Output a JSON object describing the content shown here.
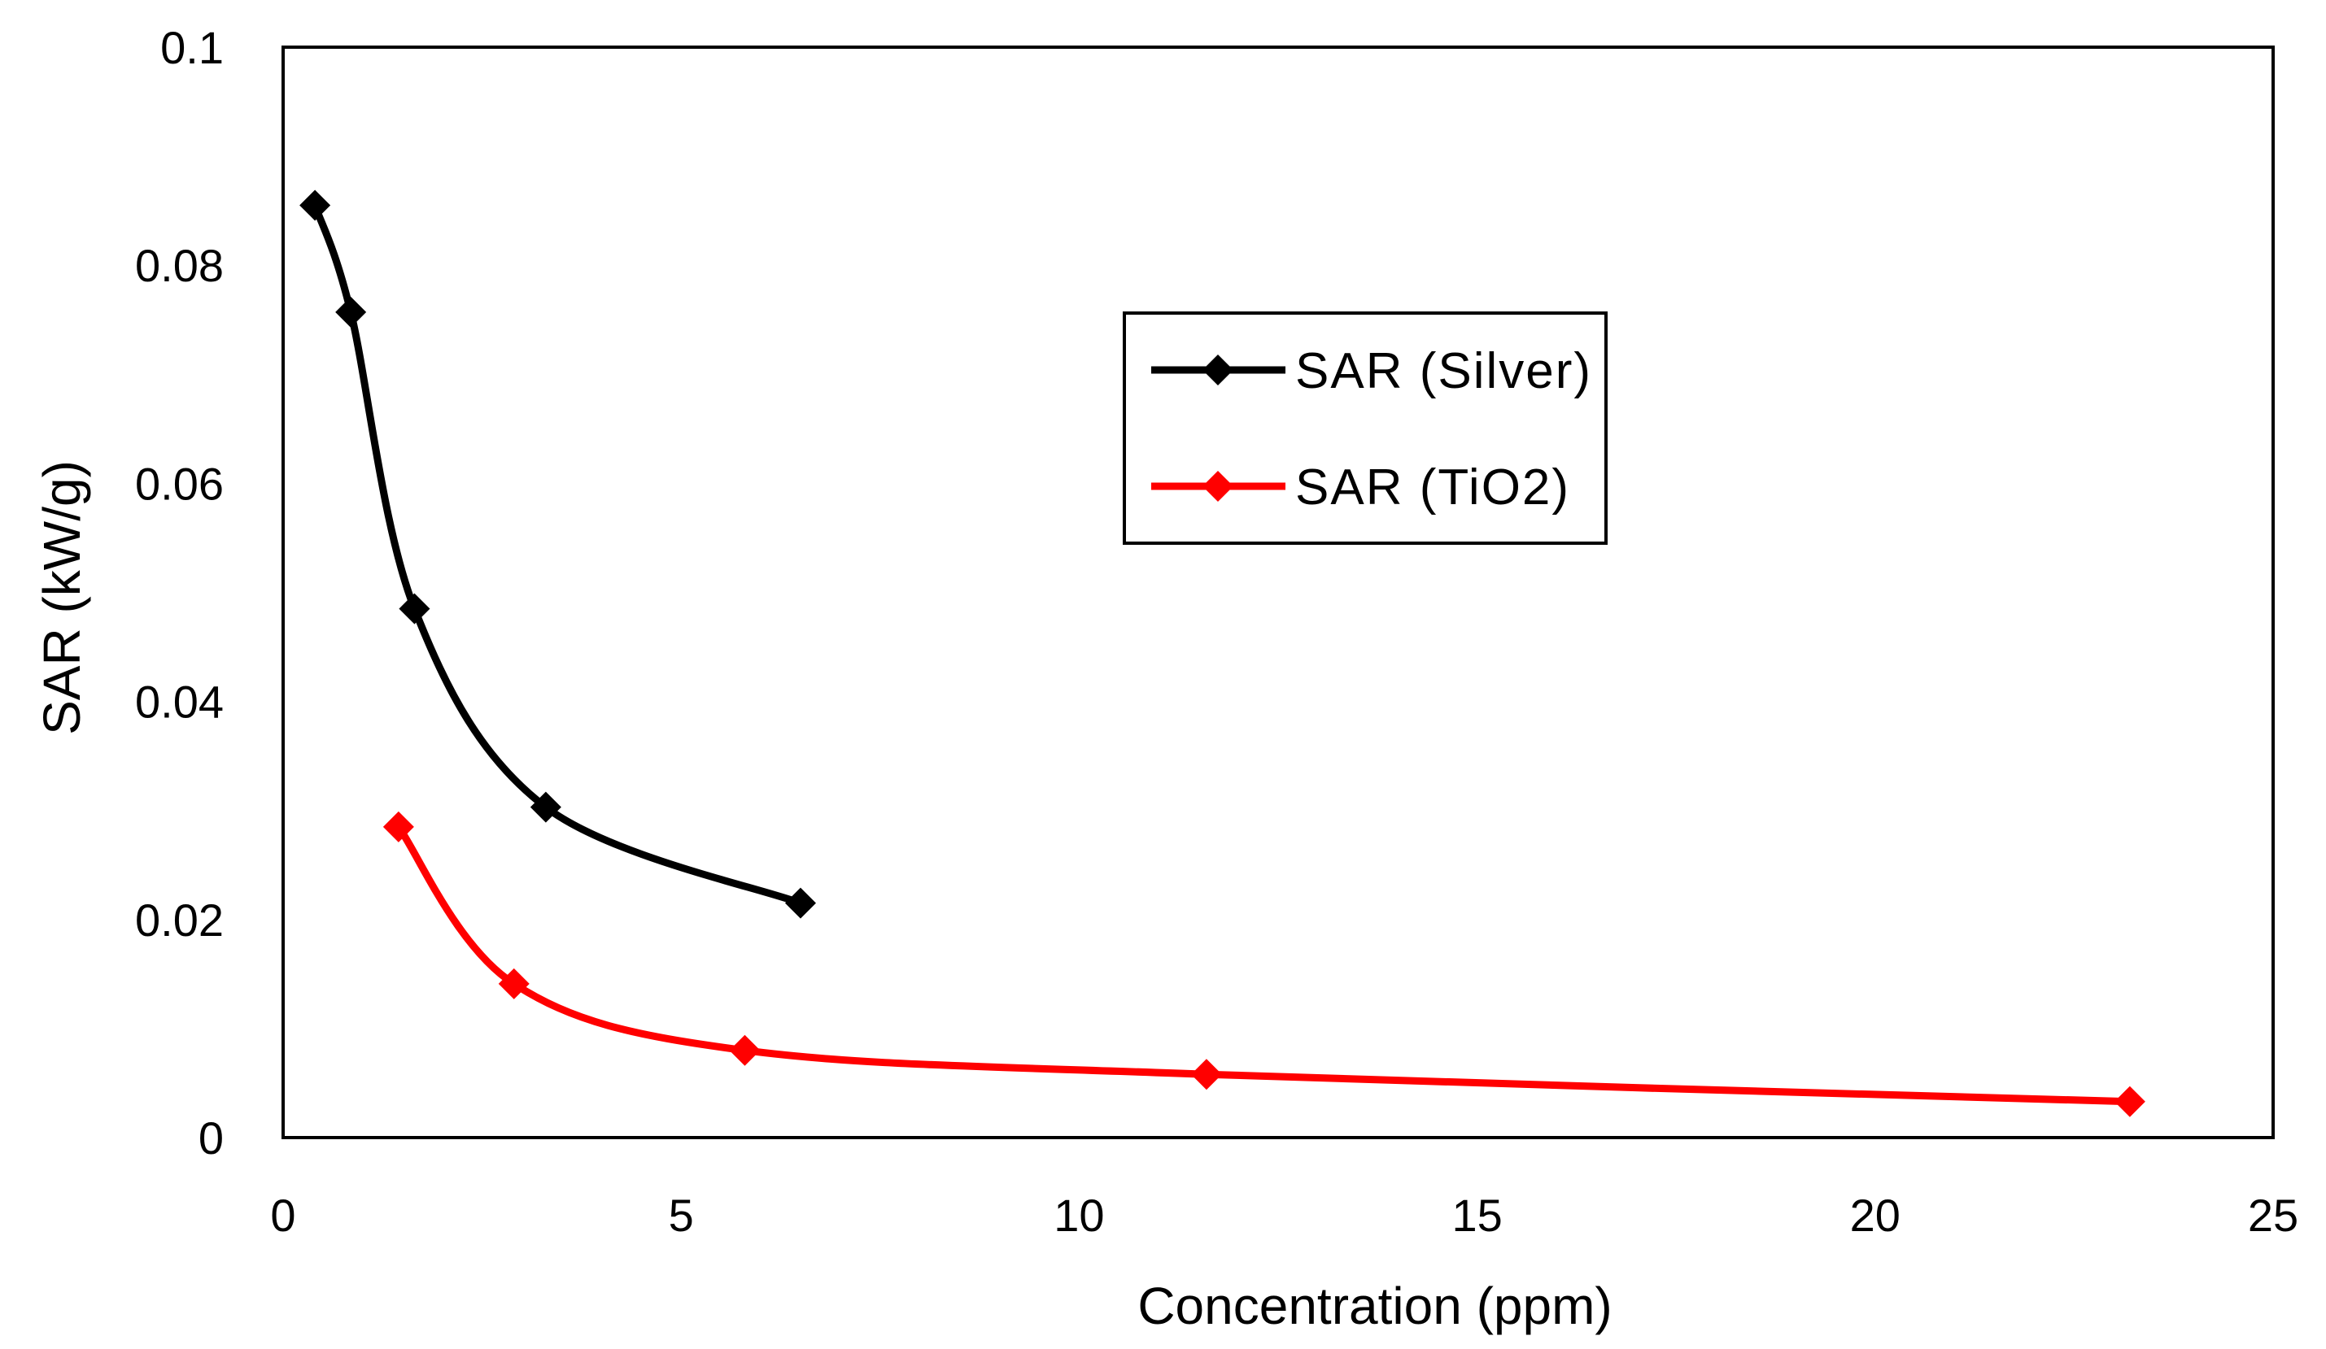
{
  "chart_data": {
    "type": "line",
    "title": "",
    "xlabel": "Concentration (ppm)",
    "ylabel": "SAR (kW/g)",
    "xlim": [
      0,
      25
    ],
    "ylim": [
      0,
      0.1
    ],
    "x_ticks": [
      0,
      5,
      10,
      15,
      20,
      25
    ],
    "x_tick_labels": [
      "0",
      "5",
      "10",
      "15",
      "20",
      "25"
    ],
    "y_ticks": [
      0,
      0.02,
      0.04,
      0.06,
      0.08,
      0.1
    ],
    "y_tick_labels": [
      "0",
      "0.02",
      "0.04",
      "0.06",
      "0.08",
      "0.1"
    ],
    "grid": false,
    "legend_position": "upper-center",
    "series": [
      {
        "name": "SAR (Silver)",
        "color": "#000000",
        "marker": "diamond",
        "smooth": true,
        "x": [
          0.4,
          0.85,
          1.65,
          3.3,
          6.5
        ],
        "y": [
          0.0855,
          0.0757,
          0.0485,
          0.0303,
          0.0215
        ]
      },
      {
        "name": "SAR (TiO2)",
        "color": "#ff0000",
        "marker": "diamond",
        "smooth": true,
        "x": [
          1.45,
          2.9,
          5.8,
          11.6,
          23.2
        ],
        "y": [
          0.0285,
          0.0141,
          0.008,
          0.0058,
          0.0033
        ]
      }
    ]
  }
}
